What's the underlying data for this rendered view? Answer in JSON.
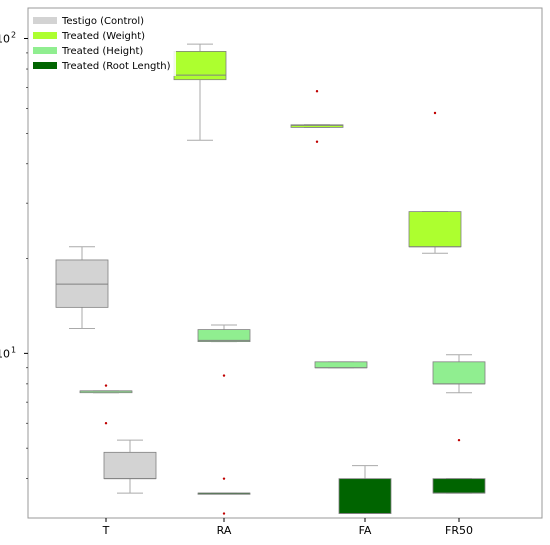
{
  "chart_data": {
    "type": "box",
    "title": "",
    "xlabel": "",
    "ylabel": "",
    "y_scale": "log",
    "ylim": [
      3,
      125
    ],
    "grid": false,
    "legend_position": "top-left",
    "categories": [
      "T",
      "RA",
      "FA",
      "FR50"
    ],
    "y_tick_labels": [
      {
        "value": 100,
        "label": "10",
        "exponent": "2"
      },
      {
        "value": 10,
        "label": "10",
        "exponent": "1"
      }
    ],
    "series": [
      {
        "name": "Testigo (Control)",
        "color": "#d3d3d3",
        "boxes": [
          {
            "category": "T",
            "whisker_low": 12.0,
            "q1": 14.0,
            "median": 16.6,
            "q3": 19.8,
            "whisker_high": 21.8,
            "outliers": []
          },
          {
            "category": "T",
            "whisker_low": 3.6,
            "q1": 4.0,
            "median": 4.0,
            "q3": 4.85,
            "whisker_high": 5.3,
            "outliers": []
          }
        ]
      },
      {
        "name": "Treated (Weight)",
        "color": "#adff2f",
        "boxes": [
          {
            "category": "RA",
            "whisker_low": 47.5,
            "q1": 74.0,
            "median": 76.5,
            "q3": 91.0,
            "whisker_high": 96.0,
            "outliers": []
          },
          {
            "category": "FA",
            "whisker_low": 52.2,
            "q1": 52.2,
            "median": 53.0,
            "q3": 53.2,
            "whisker_high": 53.2,
            "outliers": [
              68.0,
              47.0
            ]
          },
          {
            "category": "FR50",
            "whisker_low": 20.8,
            "q1": 21.8,
            "median": 21.8,
            "q3": 28.2,
            "whisker_high": 28.2,
            "outliers": [
              58.0
            ]
          }
        ]
      },
      {
        "name": "Treated (Height)",
        "color": "#90ee90",
        "boxes": [
          {
            "category": "T",
            "whisker_low": 7.5,
            "q1": 7.5,
            "median": 7.6,
            "q3": 7.6,
            "whisker_high": 7.6,
            "outliers": [
              7.9,
              6.0
            ]
          },
          {
            "category": "RA",
            "whisker_low": 10.9,
            "q1": 10.9,
            "median": 11.0,
            "q3": 11.9,
            "whisker_high": 12.3,
            "outliers": [
              8.5
            ]
          },
          {
            "category": "FA",
            "whisker_low": 9.0,
            "q1": 9.0,
            "median": 9.0,
            "q3": 9.4,
            "whisker_high": 9.4,
            "outliers": []
          },
          {
            "category": "FR50",
            "whisker_low": 7.5,
            "q1": 8.0,
            "median": 8.0,
            "q3": 9.4,
            "whisker_high": 9.9,
            "outliers": [
              5.3
            ]
          }
        ]
      },
      {
        "name": "Treated (Root Length)",
        "color": "#006400",
        "boxes": [
          {
            "category": "RA",
            "whisker_low": 3.6,
            "q1": 3.6,
            "median": 3.6,
            "q3": 3.6,
            "whisker_high": 3.6,
            "outliers": [
              4.0,
              3.1
            ]
          },
          {
            "category": "FA",
            "whisker_low": 3.1,
            "q1": 3.1,
            "median": 3.1,
            "q3": 4.0,
            "whisker_high": 4.4,
            "outliers": []
          },
          {
            "category": "FR50",
            "whisker_low": 3.6,
            "q1": 3.6,
            "median": 3.6,
            "q3": 4.0,
            "whisker_high": 4.0,
            "outliers": []
          }
        ]
      }
    ],
    "styles": {
      "whisker_color": "#aaaaaa",
      "box_edge_color": "#808080",
      "outlier_color": "#c00000",
      "axes_color": "#9a9a9a"
    }
  }
}
